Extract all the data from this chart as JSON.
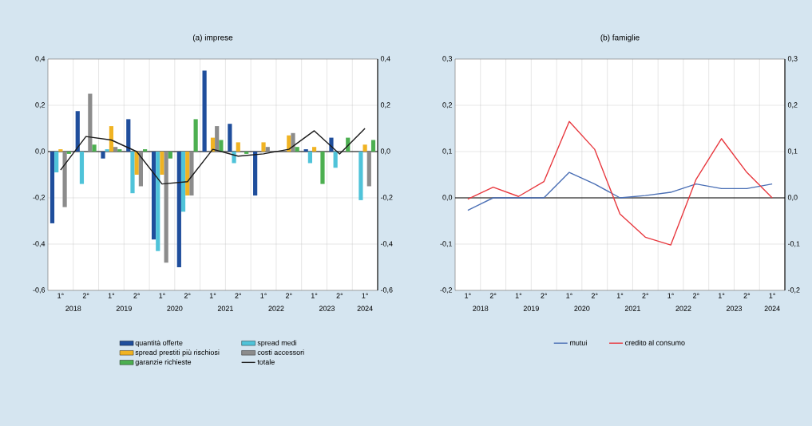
{
  "chart_data": [
    {
      "type": "bar",
      "title": "(a) imprese",
      "categories": [
        "1°",
        "2°",
        "1°",
        "2°",
        "1°",
        "2°",
        "1°",
        "2°",
        "1°",
        "2°",
        "1°",
        "2°",
        "1°"
      ],
      "annotations": [
        "2018",
        "2019",
        "2020",
        "2021",
        "2022",
        "2023",
        "2024"
      ],
      "series": [
        {
          "name": "quantità offerte",
          "color": "#1f4e9c",
          "values": [
            -0.31,
            0.175,
            -0.03,
            0.14,
            -0.38,
            -0.5,
            0.35,
            0.12,
            -0.19,
            0.0,
            0.01,
            0.06,
            0.0
          ]
        },
        {
          "name": "spread medi",
          "color": "#4fc3d9",
          "values": [
            -0.09,
            -0.14,
            0.01,
            -0.18,
            -0.43,
            -0.26,
            0.0,
            -0.05,
            0.0,
            0.0,
            -0.05,
            -0.07,
            -0.21
          ]
        },
        {
          "name": "spread prestiti più rischiosi",
          "color": "#f0b323",
          "values": [
            0.01,
            0.0,
            0.11,
            -0.1,
            -0.1,
            -0.19,
            0.06,
            0.04,
            0.04,
            0.07,
            0.02,
            0.0,
            0.03
          ]
        },
        {
          "name": "costi accessori",
          "color": "#8c8c8c",
          "values": [
            -0.24,
            0.25,
            0.02,
            -0.15,
            -0.48,
            -0.19,
            0.11,
            0.0,
            0.02,
            0.08,
            0.0,
            0.0,
            -0.15
          ]
        },
        {
          "name": "garanzie richieste",
          "color": "#4caf50",
          "values": [
            -0.01,
            0.03,
            0.01,
            0.01,
            -0.03,
            0.14,
            0.05,
            -0.01,
            0.0,
            0.02,
            -0.14,
            0.06,
            0.05
          ]
        },
        {
          "name": "totale",
          "type": "line",
          "color": "#1a1a1a",
          "values": [
            -0.08,
            0.065,
            0.05,
            0.0,
            -0.14,
            -0.13,
            0.01,
            -0.02,
            -0.01,
            0.01,
            0.09,
            -0.01,
            0.1
          ]
        }
      ],
      "ylim": [
        -0.6,
        0.4
      ],
      "yticks": [
        {
          "value": -0.6,
          "label": "-0,6"
        },
        {
          "value": -0.4,
          "label": "-0,4"
        },
        {
          "value": -0.2,
          "label": "-0,2"
        },
        {
          "value": 0,
          "label": "0,0"
        },
        {
          "value": 0.2,
          "label": "0,2"
        },
        {
          "value": 0.4,
          "label": "0,4"
        }
      ],
      "y2lim": [
        -0.6,
        0.4
      ],
      "y2ticks": [
        {
          "value": -0.6,
          "label": "-0,6"
        },
        {
          "value": -0.4,
          "label": "-0,4"
        },
        {
          "value": -0.2,
          "label": "-0,2"
        },
        {
          "value": 0,
          "label": "0,0"
        },
        {
          "value": 0.2,
          "label": "0,2"
        },
        {
          "value": 0.4,
          "label": "0,4"
        }
      ],
      "grid": true,
      "legend": "bottom"
    },
    {
      "type": "line",
      "title": "(b) famiglie",
      "categories": [
        "1°",
        "2°",
        "1°",
        "2°",
        "1°",
        "2°",
        "1°",
        "2°",
        "1°",
        "2°",
        "1°",
        "2°",
        "1°"
      ],
      "annotations": [
        "2018",
        "2019",
        "2020",
        "2021",
        "2022",
        "2023",
        "2024"
      ],
      "series": [
        {
          "name": "mutui",
          "color": "#4a6fb5",
          "values": [
            -0.027,
            0.0,
            0.0,
            0.0,
            0.055,
            0.03,
            0.0,
            0.005,
            0.012,
            0.03,
            0.02,
            0.02,
            0.03
          ]
        },
        {
          "name": "credito al consumo",
          "color": "#e8393f",
          "values": [
            -0.003,
            0.023,
            0.003,
            0.035,
            0.165,
            0.105,
            -0.035,
            -0.085,
            -0.102,
            0.04,
            0.128,
            0.055,
            0.0
          ]
        }
      ],
      "ylim": [
        -0.2,
        0.3
      ],
      "yticks": [
        {
          "value": -0.2,
          "label": "-0,2"
        },
        {
          "value": -0.1,
          "label": "-0,1"
        },
        {
          "value": 0,
          "label": "0,0"
        },
        {
          "value": 0.1,
          "label": "0,1"
        },
        {
          "value": 0.2,
          "label": "0,2"
        },
        {
          "value": 0.3,
          "label": "0,3"
        }
      ],
      "y2lim": [
        -0.2,
        0.3
      ],
      "y2ticks": [
        {
          "value": -0.2,
          "label": "-0,2"
        },
        {
          "value": -0.1,
          "label": "-0,1"
        },
        {
          "value": 0,
          "label": "0,0"
        },
        {
          "value": 0.1,
          "label": "0,1"
        },
        {
          "value": 0.2,
          "label": "0,2"
        },
        {
          "value": 0.3,
          "label": "0,3"
        }
      ],
      "grid": true,
      "legend": "bottom"
    }
  ]
}
